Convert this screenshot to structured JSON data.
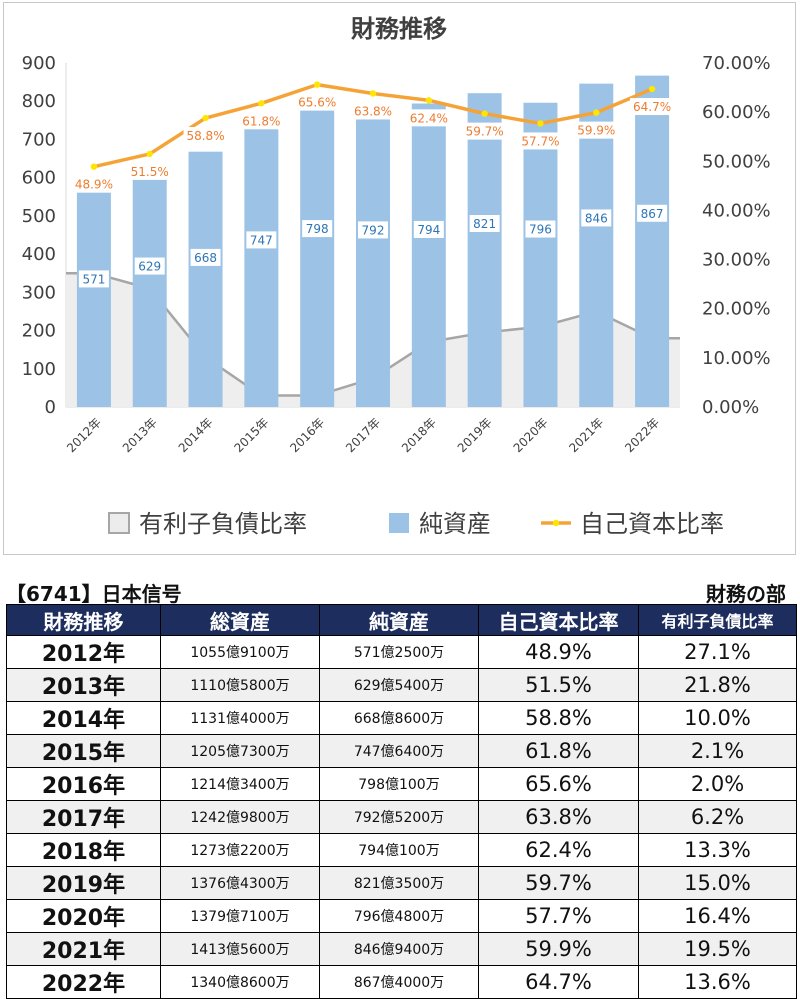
{
  "chart_data": {
    "type": "bar",
    "title": "財務推移",
    "categories": [
      "2012年",
      "2013年",
      "2014年",
      "2015年",
      "2016年",
      "2017年",
      "2018年",
      "2019年",
      "2020年",
      "2021年",
      "2022年"
    ],
    "series": [
      {
        "name": "有利子負債比率",
        "type": "area",
        "axis": "left",
        "color": "#a6a6a6",
        "values": [
          350,
          310,
          130,
          30,
          30,
          75,
          170,
          195,
          210,
          250,
          180
        ]
      },
      {
        "name": "純資産",
        "type": "bar",
        "axis": "left",
        "color": "#9cc3e6",
        "values": [
          571,
          629,
          668,
          747,
          798,
          792,
          794,
          821,
          796,
          846,
          867
        ]
      },
      {
        "name": "自己資本比率",
        "type": "line",
        "axis": "right",
        "color": "#f5a336",
        "marker_color": "#ffe600",
        "values": [
          48.9,
          51.5,
          58.8,
          61.8,
          65.6,
          63.8,
          62.4,
          59.7,
          57.7,
          59.9,
          64.7
        ],
        "labels": [
          "48.9%",
          "51.5%",
          "58.8%",
          "61.8%",
          "65.6%",
          "63.8%",
          "62.4%",
          "59.7%",
          "57.7%",
          "59.9%",
          "64.7%"
        ]
      }
    ],
    "ylim": [
      0,
      900
    ],
    "yticks": [
      "0",
      "100",
      "200",
      "300",
      "400",
      "500",
      "600",
      "700",
      "800",
      "900"
    ],
    "y2lim": [
      0,
      70
    ],
    "y2ticks": [
      "0.00%",
      "10.00%",
      "20.00%",
      "30.00%",
      "40.00%",
      "50.00%",
      "60.00%",
      "70.00%"
    ],
    "legend_position": "bottom",
    "grid": false
  },
  "company": "【6741】日本信号",
  "section": "財務の部",
  "table": {
    "headers": [
      "財務推移",
      "総資産",
      "純資産",
      "自己資本比率",
      "有利子負債比率"
    ],
    "rows": [
      [
        "2012年",
        "1055億9100万",
        "571億2500万",
        "48.9%",
        "27.1%"
      ],
      [
        "2013年",
        "1110億5800万",
        "629億5400万",
        "51.5%",
        "21.8%"
      ],
      [
        "2014年",
        "1131億4000万",
        "668億8600万",
        "58.8%",
        "10.0%"
      ],
      [
        "2015年",
        "1205億7300万",
        "747億6400万",
        "61.8%",
        "2.1%"
      ],
      [
        "2016年",
        "1214億3400万",
        "798億100万",
        "65.6%",
        "2.0%"
      ],
      [
        "2017年",
        "1242億9800万",
        "792億5200万",
        "63.8%",
        "6.2%"
      ],
      [
        "2018年",
        "1273億2200万",
        "794億100万",
        "62.4%",
        "13.3%"
      ],
      [
        "2019年",
        "1376億4300万",
        "821億3500万",
        "59.7%",
        "15.0%"
      ],
      [
        "2020年",
        "1379億7100万",
        "796億4800万",
        "57.7%",
        "16.4%"
      ],
      [
        "2021年",
        "1413億5600万",
        "846億9400万",
        "59.9%",
        "19.5%"
      ],
      [
        "2022年",
        "1340億8600万",
        "867億4000万",
        "64.7%",
        "13.6%"
      ]
    ]
  }
}
